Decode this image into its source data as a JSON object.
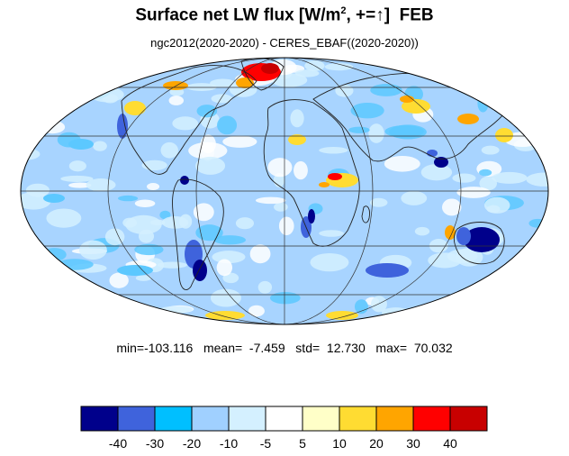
{
  "title": {
    "prefix": "Surface net LW flux [W/m",
    "superscript": "2",
    "suffix": ", +=",
    "arrow": "↑",
    "close": "]",
    "month": "FEB"
  },
  "subtitle": "ngc2012(2020-2020) - CERES_EBAF((2020-2020))",
  "stats": {
    "text": "min=-103.116   mean=  -7.459   std=  12.730   max=  70.032"
  },
  "colorbar": {
    "colors": [
      "#00008b",
      "#3f63dc",
      "#00bfff",
      "#a0d0ff",
      "#d4f0ff",
      "#ffffff",
      "#ffffc8",
      "#ffdc32",
      "#ffa500",
      "#ff0000",
      "#c80000"
    ],
    "labels": [
      "-40",
      "-30",
      "-20",
      "-10",
      "-5",
      "5",
      "10",
      "20",
      "30",
      "40"
    ]
  },
  "palette": {
    "ocean_base": "#a8d4ff",
    "light": "#d4f0ff",
    "mid": "#5cc8ff",
    "strong": "#3f63dc",
    "deep": "#00008b",
    "warm": "#ffdc32",
    "orange": "#ffa500",
    "red": "#ff0000",
    "darkred": "#c80000"
  }
}
